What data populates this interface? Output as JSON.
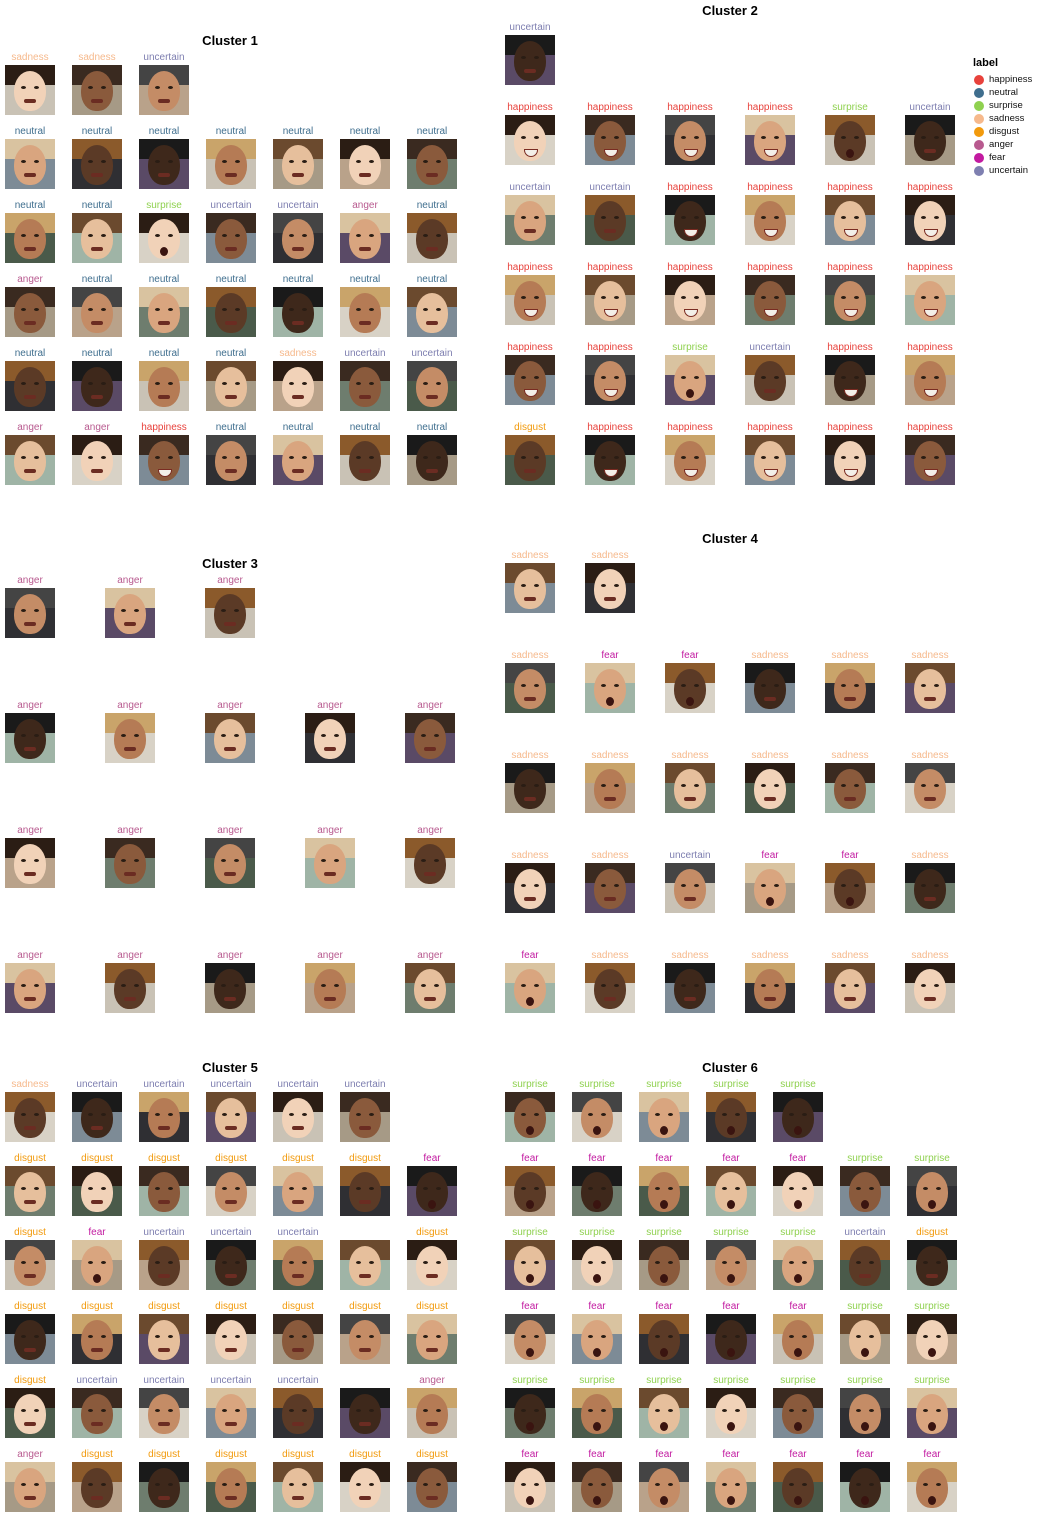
{
  "legend": {
    "title": "label",
    "items": [
      {
        "label": "happiness",
        "color": "#e8423c"
      },
      {
        "label": "neutral",
        "color": "#3f6e8e"
      },
      {
        "label": "surprise",
        "color": "#8fd14f"
      },
      {
        "label": "sadness",
        "color": "#f6b98c"
      },
      {
        "label": "disgust",
        "color": "#f29a0c"
      },
      {
        "label": "anger",
        "color": "#b85a8f"
      },
      {
        "label": "fear",
        "color": "#c21aa0"
      },
      {
        "label": "uncertain",
        "color": "#7e7fb0"
      }
    ]
  },
  "clusters": [
    {
      "title": "Cluster 1",
      "rows": [
        [
          "sadness",
          "sadness",
          "uncertain"
        ],
        [
          "neutral",
          "neutral",
          "neutral",
          "neutral",
          "neutral",
          "neutral",
          "neutral"
        ],
        [
          "neutral",
          "neutral",
          "surprise",
          "uncertain",
          "uncertain",
          "anger",
          "neutral"
        ],
        [
          "anger",
          "neutral",
          "neutral",
          "neutral",
          "neutral",
          "neutral",
          "neutral"
        ],
        [
          "neutral",
          "neutral",
          "neutral",
          "neutral",
          "sadness",
          "uncertain",
          "uncertain"
        ],
        [
          "anger",
          "anger",
          "happiness",
          "neutral",
          "neutral",
          "neutral",
          "neutral"
        ]
      ]
    },
    {
      "title": "Cluster 2",
      "rows": [
        [
          "uncertain"
        ],
        [
          "happiness",
          "happiness",
          "happiness",
          "happiness",
          "surprise",
          "uncertain"
        ],
        [
          "uncertain",
          "uncertain",
          "happiness",
          "happiness",
          "happiness",
          "happiness"
        ],
        [
          "happiness",
          "happiness",
          "happiness",
          "happiness",
          "happiness",
          "happiness"
        ],
        [
          "happiness",
          "happiness",
          "surprise",
          "uncertain",
          "happiness",
          "happiness"
        ],
        [
          "disgust",
          "happiness",
          "happiness",
          "happiness",
          "happiness",
          "happiness"
        ]
      ]
    },
    {
      "title": "Cluster 3",
      "rows": [
        [
          "anger",
          "anger",
          "anger"
        ],
        [
          "anger",
          "anger",
          "anger",
          "anger",
          "anger"
        ],
        [
          "anger",
          "anger",
          "anger",
          "anger",
          "anger"
        ],
        [
          "anger",
          "anger",
          "anger",
          "anger",
          "anger"
        ]
      ]
    },
    {
      "title": "Cluster 4",
      "rows": [
        [
          "sadness",
          "sadness"
        ],
        [
          "sadness",
          "fear",
          "fear",
          "sadness",
          "sadness",
          "sadness"
        ],
        [
          "sadness",
          "sadness",
          "sadness",
          "sadness",
          "sadness",
          "sadness"
        ],
        [
          "sadness",
          "sadness",
          "uncertain",
          "fear",
          "fear",
          "sadness"
        ],
        [
          "fear",
          "sadness",
          "sadness",
          "sadness",
          "sadness",
          "sadness"
        ]
      ]
    },
    {
      "title": "Cluster 5",
      "rows": [
        [
          "sadness",
          "uncertain",
          "uncertain",
          "uncertain",
          "uncertain",
          "uncertain"
        ],
        [
          "disgust",
          "disgust",
          "disgust",
          "disgust",
          "disgust",
          "disgust",
          "fear"
        ],
        [
          "disgust",
          "fear",
          "uncertain",
          "uncertain",
          "uncertain",
          "",
          "disgust"
        ],
        [
          "disgust",
          "disgust",
          "disgust",
          "disgust",
          "disgust",
          "disgust",
          "disgust"
        ],
        [
          "disgust",
          "uncertain",
          "uncertain",
          "uncertain",
          "uncertain",
          "",
          "anger"
        ],
        [
          "anger",
          "disgust",
          "disgust",
          "disgust",
          "disgust",
          "disgust",
          "disgust"
        ]
      ]
    },
    {
      "title": "Cluster 6",
      "rows": [
        [
          "surprise",
          "surprise",
          "surprise",
          "surprise",
          "surprise"
        ],
        [
          "fear",
          "fear",
          "fear",
          "fear",
          "fear",
          "surprise",
          "surprise"
        ],
        [
          "surprise",
          "surprise",
          "surprise",
          "surprise",
          "surprise",
          "uncertain",
          "disgust"
        ],
        [
          "fear",
          "fear",
          "fear",
          "fear",
          "fear",
          "surprise",
          "surprise"
        ],
        [
          "surprise",
          "surprise",
          "surprise",
          "surprise",
          "surprise",
          "surprise",
          "surprise"
        ],
        [
          "fear",
          "fear",
          "fear",
          "fear",
          "fear",
          "fear",
          "fear"
        ]
      ]
    }
  ]
}
